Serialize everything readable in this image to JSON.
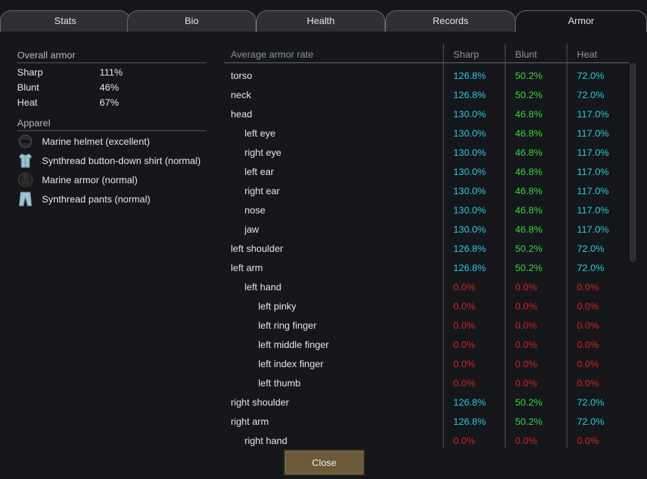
{
  "tabs": [
    {
      "label": "Stats"
    },
    {
      "label": "Bio"
    },
    {
      "label": "Health"
    },
    {
      "label": "Records"
    },
    {
      "label": "Armor"
    }
  ],
  "overall": {
    "title": "Overall armor",
    "rows": [
      {
        "name": "Sharp",
        "value": "111%"
      },
      {
        "name": "Blunt",
        "value": "46%"
      },
      {
        "name": "Heat",
        "value": "67%"
      }
    ]
  },
  "apparel": {
    "title": "Apparel",
    "items": [
      {
        "label": "Marine helmet (excellent)",
        "icon": "helmet-icon"
      },
      {
        "label": "Synthread button-down shirt (normal)",
        "icon": "shirt-icon"
      },
      {
        "label": "Marine armor (normal)",
        "icon": "armor-icon"
      },
      {
        "label": "Synthread pants (normal)",
        "icon": "pants-icon"
      }
    ]
  },
  "table": {
    "headers": {
      "part": "Average armor rate",
      "sharp": "Sharp",
      "blunt": "Blunt",
      "heat": "Heat"
    },
    "rows": [
      {
        "part": "torso",
        "indent": 0,
        "sharp": "126.8%",
        "blunt": "50.2%",
        "heat": "72.0%"
      },
      {
        "part": "neck",
        "indent": 0,
        "sharp": "126.8%",
        "blunt": "50.2%",
        "heat": "72.0%"
      },
      {
        "part": "head",
        "indent": 0,
        "sharp": "130.0%",
        "blunt": "46.8%",
        "heat": "117.0%"
      },
      {
        "part": "left eye",
        "indent": 1,
        "sharp": "130.0%",
        "blunt": "46.8%",
        "heat": "117.0%"
      },
      {
        "part": "right eye",
        "indent": 1,
        "sharp": "130.0%",
        "blunt": "46.8%",
        "heat": "117.0%"
      },
      {
        "part": "left ear",
        "indent": 1,
        "sharp": "130.0%",
        "blunt": "46.8%",
        "heat": "117.0%"
      },
      {
        "part": "right ear",
        "indent": 1,
        "sharp": "130.0%",
        "blunt": "46.8%",
        "heat": "117.0%"
      },
      {
        "part": "nose",
        "indent": 1,
        "sharp": "130.0%",
        "blunt": "46.8%",
        "heat": "117.0%"
      },
      {
        "part": "jaw",
        "indent": 1,
        "sharp": "130.0%",
        "blunt": "46.8%",
        "heat": "117.0%"
      },
      {
        "part": "left shoulder",
        "indent": 0,
        "sharp": "126.8%",
        "blunt": "50.2%",
        "heat": "72.0%"
      },
      {
        "part": "left arm",
        "indent": 0,
        "sharp": "126.8%",
        "blunt": "50.2%",
        "heat": "72.0%"
      },
      {
        "part": "left hand",
        "indent": 1,
        "sharp": "0.0%",
        "blunt": "0.0%",
        "heat": "0.0%"
      },
      {
        "part": "left pinky",
        "indent": 2,
        "sharp": "0.0%",
        "blunt": "0.0%",
        "heat": "0.0%"
      },
      {
        "part": "left ring finger",
        "indent": 2,
        "sharp": "0.0%",
        "blunt": "0.0%",
        "heat": "0.0%"
      },
      {
        "part": "left middle finger",
        "indent": 2,
        "sharp": "0.0%",
        "blunt": "0.0%",
        "heat": "0.0%"
      },
      {
        "part": "left index finger",
        "indent": 2,
        "sharp": "0.0%",
        "blunt": "0.0%",
        "heat": "0.0%"
      },
      {
        "part": "left thumb",
        "indent": 2,
        "sharp": "0.0%",
        "blunt": "0.0%",
        "heat": "0.0%"
      },
      {
        "part": "right shoulder",
        "indent": 0,
        "sharp": "126.8%",
        "blunt": "50.2%",
        "heat": "72.0%"
      },
      {
        "part": "right arm",
        "indent": 0,
        "sharp": "126.8%",
        "blunt": "50.2%",
        "heat": "72.0%"
      },
      {
        "part": "right hand",
        "indent": 1,
        "sharp": "0.0%",
        "blunt": "0.0%",
        "heat": "0.0%"
      }
    ]
  },
  "colors": {
    "sharp": "#2ec9dc",
    "blunt": "#3ed23e",
    "heat": "#2ec9dc",
    "zero": "#d42222"
  },
  "close_label": "Close"
}
